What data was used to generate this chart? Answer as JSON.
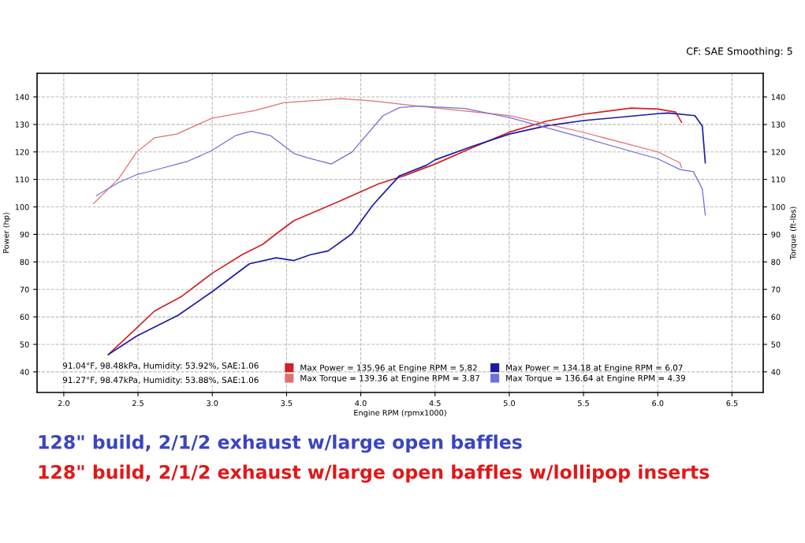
{
  "chart_data": {
    "type": "line",
    "xlabel": "Engine RPM (rpmx1000)",
    "ylabel": "Power (hp)",
    "y2label": "Torque (ft-lbs)",
    "xlim": [
      1.82,
      6.71
    ],
    "xticks": [
      {
        "value": 2,
        "label": "2.0"
      },
      {
        "value": 2.5,
        "label": "2.5"
      },
      {
        "value": 3,
        "label": "3.0"
      },
      {
        "value": 3.5,
        "label": "3.5"
      },
      {
        "value": 4,
        "label": "4.0"
      },
      {
        "value": 4.5,
        "label": "4.5"
      },
      {
        "value": 5,
        "label": "5.0"
      },
      {
        "value": 5.5,
        "label": "5.5"
      },
      {
        "value": 6,
        "label": "6.0"
      },
      {
        "value": 6.5,
        "label": "6.5"
      }
    ],
    "ylim": [
      32.5,
      148.6
    ],
    "yticks": [
      40,
      50,
      60,
      70,
      80,
      90,
      100,
      110,
      120,
      130,
      140
    ],
    "y2lim": [
      32.5,
      148.6
    ],
    "y2ticks": [
      40,
      50,
      60,
      70,
      80,
      90,
      100,
      110,
      120,
      130,
      140
    ],
    "grid": true,
    "line_style": "solid",
    "legend": "bottom",
    "series": [
      {
        "name": "Max Power = 135.96 at Engine RPM = 5.82",
        "color": "#d42020",
        "x": [
          2.3,
          2.49,
          2.61,
          2.79,
          3.0,
          3.2,
          3.34,
          3.43,
          3.55,
          3.82,
          4.12,
          4.29,
          4.5,
          4.75,
          5.0,
          5.25,
          5.5,
          5.82,
          6.0,
          6.12,
          6.16
        ],
        "values": [
          46.3,
          55.9,
          62.1,
          67.3,
          75.9,
          82.6,
          86.4,
          90.2,
          95.0,
          101.2,
          108.4,
          111.3,
          115.6,
          121.5,
          127.2,
          131.2,
          133.7,
          135.96,
          135.6,
          134.5,
          130.8
        ]
      },
      {
        "name": "Max Power = 134.18 at Engine RPM = 6.07",
        "color": "#1a1aa8",
        "x": [
          2.3,
          2.49,
          2.77,
          3.0,
          3.25,
          3.43,
          3.55,
          3.66,
          3.78,
          3.94,
          4.08,
          4.26,
          4.44,
          4.5,
          4.75,
          5.0,
          5.25,
          5.5,
          6.0,
          6.07,
          6.25,
          6.3,
          6.32
        ],
        "values": [
          46.3,
          53.0,
          60.6,
          69.2,
          79.3,
          81.5,
          80.5,
          82.6,
          84.0,
          90.2,
          100.6,
          111.3,
          115.1,
          117.1,
          122.0,
          126.5,
          129.5,
          131.4,
          133.9,
          134.18,
          133.2,
          129.4,
          116.0
        ]
      },
      {
        "name": "Max Torque = 139.36 at Engine RPM = 3.87",
        "color": "#e07070",
        "axis": "y2",
        "x": [
          2.2,
          2.37,
          2.49,
          2.61,
          2.76,
          3.0,
          3.29,
          3.48,
          3.87,
          4.08,
          4.12,
          4.5,
          5.0,
          5.5,
          6.0,
          6.15,
          6.16
        ],
        "values": [
          101.2,
          110.3,
          119.9,
          125.1,
          126.5,
          132.3,
          135.1,
          137.9,
          139.36,
          138.5,
          138.3,
          136.0,
          133.2,
          127.1,
          120.0,
          116.0,
          114.2
        ]
      },
      {
        "name": "Max Torque = 136.64 at Engine RPM = 4.39",
        "color": "#7070d8",
        "axis": "y2",
        "x": [
          2.22,
          2.37,
          2.49,
          2.6,
          2.83,
          2.99,
          3.16,
          3.26,
          3.39,
          3.55,
          3.64,
          3.8,
          3.94,
          4.15,
          4.26,
          4.39,
          4.7,
          5.0,
          5.5,
          6.0,
          6.15,
          6.24,
          6.3,
          6.32
        ],
        "values": [
          104.1,
          108.9,
          111.7,
          113.2,
          116.5,
          120.3,
          126.0,
          127.5,
          126.0,
          119.4,
          117.9,
          115.6,
          119.9,
          133.2,
          136.1,
          136.64,
          135.8,
          132.5,
          125.1,
          117.5,
          113.6,
          112.8,
          106.5,
          97.0
        ]
      }
    ],
    "annotations": [
      "CF: SAE Smoothing: 5",
      "91.04°F, 98.48kPa, Humidity: 53.92%, SAE:1.06",
      "91.27°F, 98.47kPa, Humidity: 53.88%, SAE:1.06",
      "128\" build, 2/1/2 exhaust w/large open baffles",
      "128\" build, 2/1/2 exhaust w/large open baffles w/lollipop inserts"
    ]
  }
}
